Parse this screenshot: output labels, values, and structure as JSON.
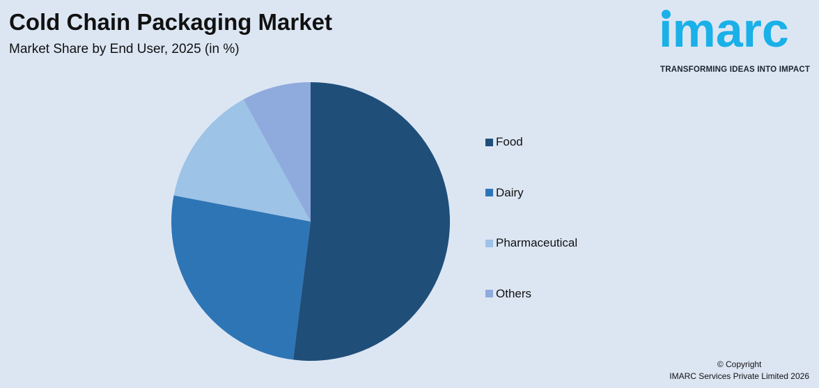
{
  "header": {
    "title": "Cold Chain Packaging Market",
    "subtitle": "Market Share by End User, 2025 (in %)"
  },
  "logo": {
    "text": "imarc",
    "tagline": "TRANSFORMING IDEAS INTO IMPACT",
    "color": "#1ab0e8"
  },
  "chart_data": {
    "type": "pie",
    "title": "Cold Chain Packaging Market",
    "subtitle": "Market Share by End User, 2025 (in %)",
    "legend_position": "right",
    "start_angle_deg": 0,
    "direction": "clockwise",
    "slices": [
      {
        "label": "Food",
        "value": 52,
        "color": "#1f4e79"
      },
      {
        "label": "Dairy",
        "value": 26,
        "color": "#2e75b6"
      },
      {
        "label": "Pharmaceutical",
        "value": 14,
        "color": "#9dc3e6"
      },
      {
        "label": "Others",
        "value": 8,
        "color": "#8faadc"
      }
    ]
  },
  "footer": {
    "copyright_line1": "© Copyright",
    "copyright_line2": "IMARC Services Private Limited 2026"
  }
}
